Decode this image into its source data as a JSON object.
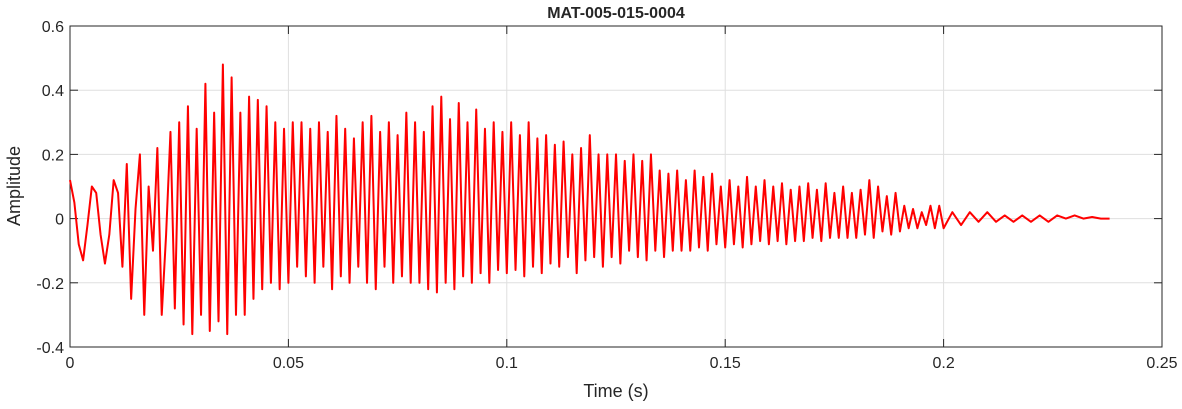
{
  "chart_data": {
    "type": "line",
    "title": "MAT-005-015-0004",
    "xlabel": "Time (s)",
    "ylabel": "Amplitude",
    "xlim": [
      0,
      0.25
    ],
    "ylim": [
      -0.4,
      0.6
    ],
    "xticks": [
      0,
      0.05,
      0.1,
      0.15,
      0.2,
      0.25
    ],
    "yticks": [
      -0.4,
      -0.2,
      0,
      0.2,
      0.4,
      0.6
    ],
    "grid": true,
    "x": [
      0,
      0.001,
      0.002,
      0.003,
      0.004,
      0.005,
      0.006,
      0.007,
      0.008,
      0.009,
      0.01,
      0.011,
      0.012,
      0.013,
      0.014,
      0.015,
      0.016,
      0.017,
      0.018,
      0.019,
      0.02,
      0.021,
      0.022,
      0.023,
      0.024,
      0.025,
      0.026,
      0.027,
      0.028,
      0.029,
      0.03,
      0.031,
      0.032,
      0.033,
      0.034,
      0.035,
      0.036,
      0.037,
      0.038,
      0.039,
      0.04,
      0.041,
      0.042,
      0.043,
      0.044,
      0.045,
      0.046,
      0.047,
      0.048,
      0.049,
      0.05,
      0.051,
      0.052,
      0.053,
      0.054,
      0.055,
      0.056,
      0.057,
      0.058,
      0.059,
      0.06,
      0.061,
      0.062,
      0.063,
      0.064,
      0.065,
      0.066,
      0.067,
      0.068,
      0.069,
      0.07,
      0.071,
      0.072,
      0.073,
      0.074,
      0.075,
      0.076,
      0.077,
      0.078,
      0.079,
      0.08,
      0.081,
      0.082,
      0.083,
      0.084,
      0.085,
      0.086,
      0.087,
      0.088,
      0.089,
      0.09,
      0.091,
      0.092,
      0.093,
      0.094,
      0.095,
      0.096,
      0.097,
      0.098,
      0.099,
      0.1,
      0.101,
      0.102,
      0.103,
      0.104,
      0.105,
      0.106,
      0.107,
      0.108,
      0.109,
      0.11,
      0.111,
      0.112,
      0.113,
      0.114,
      0.115,
      0.116,
      0.117,
      0.118,
      0.119,
      0.12,
      0.121,
      0.122,
      0.123,
      0.124,
      0.125,
      0.126,
      0.127,
      0.128,
      0.129,
      0.13,
      0.131,
      0.132,
      0.133,
      0.134,
      0.135,
      0.136,
      0.137,
      0.138,
      0.139,
      0.14,
      0.141,
      0.142,
      0.143,
      0.144,
      0.145,
      0.146,
      0.147,
      0.148,
      0.149,
      0.15,
      0.151,
      0.152,
      0.153,
      0.154,
      0.155,
      0.156,
      0.157,
      0.158,
      0.159,
      0.16,
      0.161,
      0.162,
      0.163,
      0.164,
      0.165,
      0.166,
      0.167,
      0.168,
      0.169,
      0.17,
      0.171,
      0.172,
      0.173,
      0.174,
      0.175,
      0.176,
      0.177,
      0.178,
      0.179,
      0.18,
      0.181,
      0.182,
      0.183,
      0.184,
      0.185,
      0.186,
      0.187,
      0.188,
      0.189,
      0.19,
      0.191,
      0.192,
      0.193,
      0.194,
      0.195,
      0.196,
      0.197,
      0.198,
      0.199,
      0.2,
      0.202,
      0.204,
      0.206,
      0.208,
      0.21,
      0.212,
      0.214,
      0.216,
      0.218,
      0.22,
      0.222,
      0.224,
      0.226,
      0.228,
      0.23,
      0.232,
      0.234,
      0.236,
      0.238
    ],
    "series": [
      {
        "color": "#ff0000",
        "values": [
          0.12,
          0.05,
          -0.08,
          -0.13,
          -0.02,
          0.1,
          0.08,
          -0.05,
          -0.14,
          -0.05,
          0.12,
          0.08,
          -0.15,
          0.17,
          -0.25,
          0.03,
          0.2,
          -0.3,
          0.1,
          -0.1,
          0.22,
          -0.3,
          -0.05,
          0.27,
          -0.28,
          0.3,
          -0.33,
          0.35,
          -0.36,
          0.28,
          -0.3,
          0.42,
          -0.35,
          0.33,
          -0.32,
          0.48,
          -0.36,
          0.44,
          -0.3,
          0.33,
          -0.3,
          0.38,
          -0.25,
          0.37,
          -0.22,
          0.35,
          -0.2,
          0.3,
          -0.22,
          0.28,
          -0.2,
          0.3,
          -0.15,
          0.3,
          -0.18,
          0.28,
          -0.2,
          0.3,
          -0.15,
          0.27,
          -0.22,
          0.32,
          -0.18,
          0.28,
          -0.2,
          0.25,
          -0.15,
          0.3,
          -0.2,
          0.32,
          -0.22,
          0.27,
          -0.15,
          0.3,
          -0.2,
          0.26,
          -0.18,
          0.33,
          -0.2,
          0.3,
          -0.2,
          0.27,
          -0.22,
          0.35,
          -0.23,
          0.38,
          -0.2,
          0.31,
          -0.22,
          0.36,
          -0.18,
          0.3,
          -0.2,
          0.34,
          -0.17,
          0.28,
          -0.2,
          0.3,
          -0.16,
          0.27,
          -0.17,
          0.3,
          -0.16,
          0.26,
          -0.18,
          0.3,
          -0.15,
          0.25,
          -0.17,
          0.26,
          -0.14,
          0.23,
          -0.15,
          0.24,
          -0.12,
          0.2,
          -0.17,
          0.22,
          -0.13,
          0.26,
          -0.12,
          0.2,
          -0.15,
          0.2,
          -0.12,
          0.2,
          -0.14,
          0.18,
          -0.1,
          0.2,
          -0.12,
          0.18,
          -0.13,
          0.2,
          -0.1,
          0.15,
          -0.12,
          0.14,
          -0.1,
          0.15,
          -0.1,
          0.12,
          -0.1,
          0.15,
          -0.09,
          0.13,
          -0.1,
          0.14,
          -0.08,
          0.1,
          -0.09,
          0.12,
          -0.08,
          0.1,
          -0.09,
          0.13,
          -0.08,
          0.1,
          -0.07,
          0.12,
          -0.08,
          0.1,
          -0.07,
          0.11,
          -0.08,
          0.09,
          -0.07,
          0.1,
          -0.07,
          0.11,
          -0.06,
          0.09,
          -0.07,
          0.11,
          -0.06,
          0.08,
          -0.06,
          0.1,
          -0.06,
          0.08,
          -0.06,
          0.09,
          -0.05,
          0.12,
          -0.06,
          0.1,
          -0.04,
          0.07,
          -0.05,
          0.08,
          -0.04,
          0.04,
          -0.03,
          0.03,
          -0.03,
          0.02,
          -0.02,
          0.04,
          -0.03,
          0.04,
          -0.03,
          0.02,
          -0.02,
          0.02,
          -0.01,
          0.02,
          -0.01,
          0.01,
          -0.01,
          0.01,
          -0.01,
          0.01,
          -0.01,
          0.01,
          0,
          0.01,
          0,
          0.005,
          0,
          0
        ]
      }
    ]
  }
}
